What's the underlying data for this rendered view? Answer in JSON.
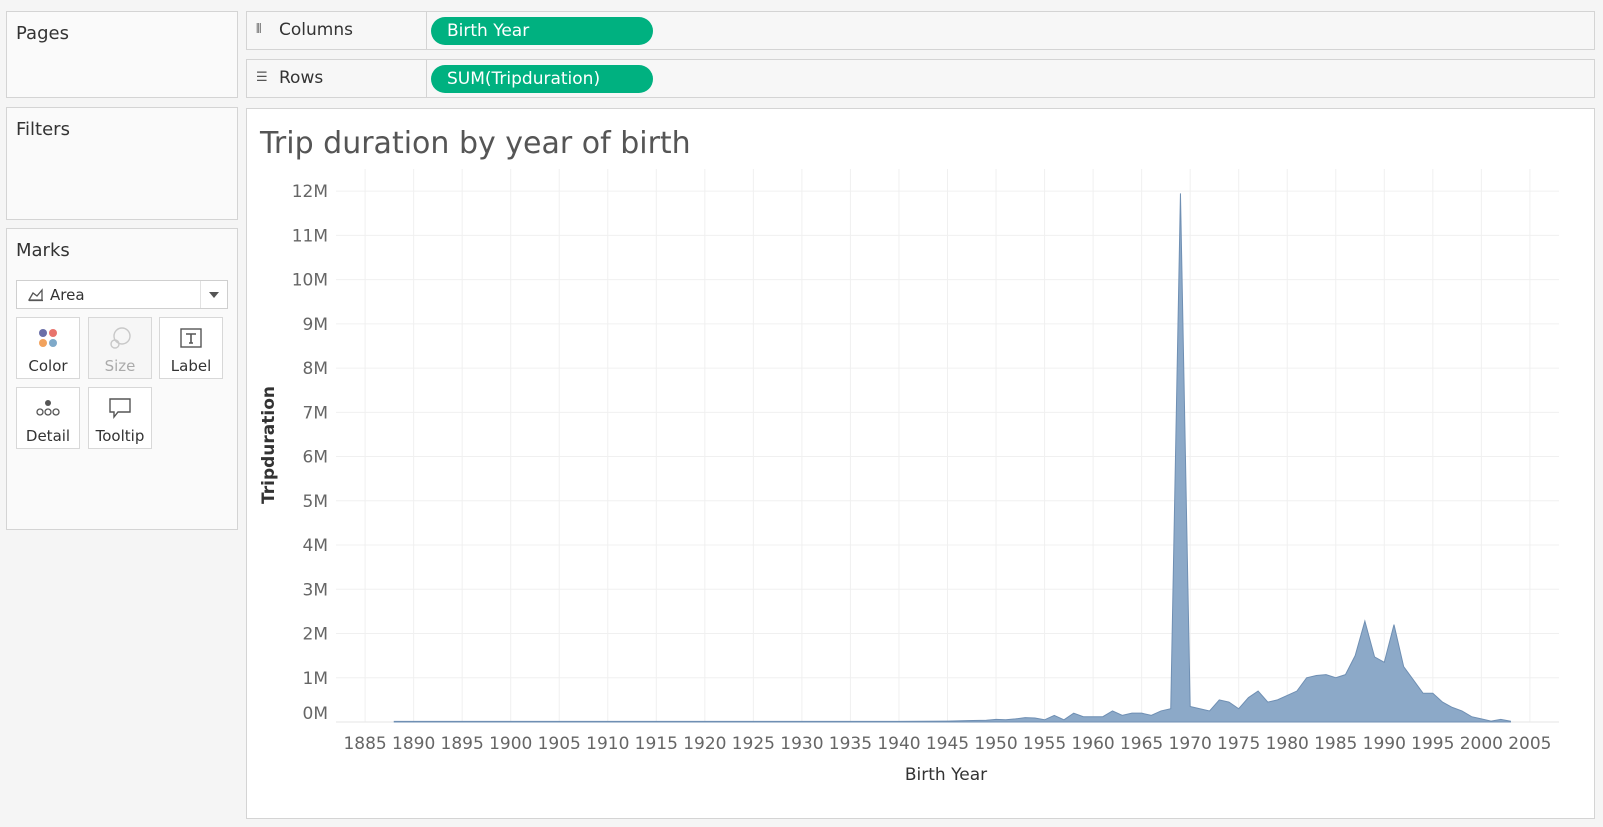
{
  "left_panel": {
    "pages_title": "Pages",
    "filters_title": "Filters",
    "marks_title": "Marks",
    "mark_type": "Area",
    "mark_buttons": [
      "Color",
      "Size",
      "Label",
      "Detail",
      "Tooltip"
    ]
  },
  "shelves": {
    "columns_label": "Columns",
    "columns_pill": "Birth Year",
    "rows_label": "Rows",
    "rows_pill": "SUM(Tripduration)"
  },
  "colors": {
    "pill": "#00b180",
    "area_fill": "#8ca9c8",
    "area_stroke": "#6f8fb3"
  },
  "chart_data": {
    "type": "area",
    "title": "Trip duration by year of birth",
    "xlabel": "Birth Year",
    "ylabel": "Tripduration",
    "xlim": [
      1882,
      2008
    ],
    "ylim": [
      0,
      12500000
    ],
    "x_ticks": [
      1885,
      1890,
      1895,
      1900,
      1905,
      1910,
      1915,
      1920,
      1925,
      1930,
      1935,
      1940,
      1945,
      1950,
      1955,
      1960,
      1965,
      1970,
      1975,
      1980,
      1985,
      1990,
      1995,
      2000,
      2005
    ],
    "y_ticks": [
      {
        "value": 0,
        "label": "0M"
      },
      {
        "value": 1000000,
        "label": "1M"
      },
      {
        "value": 2000000,
        "label": "2M"
      },
      {
        "value": 3000000,
        "label": "3M"
      },
      {
        "value": 4000000,
        "label": "4M"
      },
      {
        "value": 5000000,
        "label": "5M"
      },
      {
        "value": 6000000,
        "label": "6M"
      },
      {
        "value": 7000000,
        "label": "7M"
      },
      {
        "value": 8000000,
        "label": "8M"
      },
      {
        "value": 9000000,
        "label": "9M"
      },
      {
        "value": 10000000,
        "label": "10M"
      },
      {
        "value": 11000000,
        "label": "11M"
      },
      {
        "value": 12000000,
        "label": "12M"
      }
    ],
    "grid": true,
    "x": [
      1888,
      1890,
      1895,
      1900,
      1905,
      1910,
      1915,
      1920,
      1925,
      1930,
      1935,
      1940,
      1945,
      1947,
      1949,
      1950,
      1951,
      1952,
      1953,
      1954,
      1955,
      1956,
      1957,
      1958,
      1959,
      1960,
      1961,
      1962,
      1963,
      1964,
      1965,
      1966,
      1967,
      1968,
      1969,
      1970,
      1971,
      1972,
      1973,
      1974,
      1975,
      1976,
      1977,
      1978,
      1979,
      1980,
      1981,
      1982,
      1983,
      1984,
      1985,
      1986,
      1987,
      1988,
      1989,
      1990,
      1991,
      1992,
      1993,
      1994,
      1995,
      1996,
      1997,
      1998,
      1999,
      2000,
      2001,
      2002,
      2003
    ],
    "y": [
      15000,
      15000,
      15000,
      15000,
      15000,
      15000,
      15000,
      15000,
      15000,
      15000,
      15000,
      15000,
      20000,
      30000,
      40000,
      60000,
      50000,
      70000,
      100000,
      90000,
      50000,
      150000,
      50000,
      200000,
      120000,
      120000,
      120000,
      250000,
      150000,
      200000,
      200000,
      150000,
      250000,
      300000,
      11950000,
      350000,
      300000,
      250000,
      500000,
      450000,
      300000,
      550000,
      700000,
      450000,
      500000,
      600000,
      700000,
      1000000,
      1050000,
      1070000,
      1000000,
      1070000,
      1500000,
      2280000,
      1470000,
      1350000,
      2200000,
      1250000,
      950000,
      650000,
      650000,
      450000,
      330000,
      250000,
      120000,
      70000,
      20000,
      60000,
      20000
    ]
  }
}
